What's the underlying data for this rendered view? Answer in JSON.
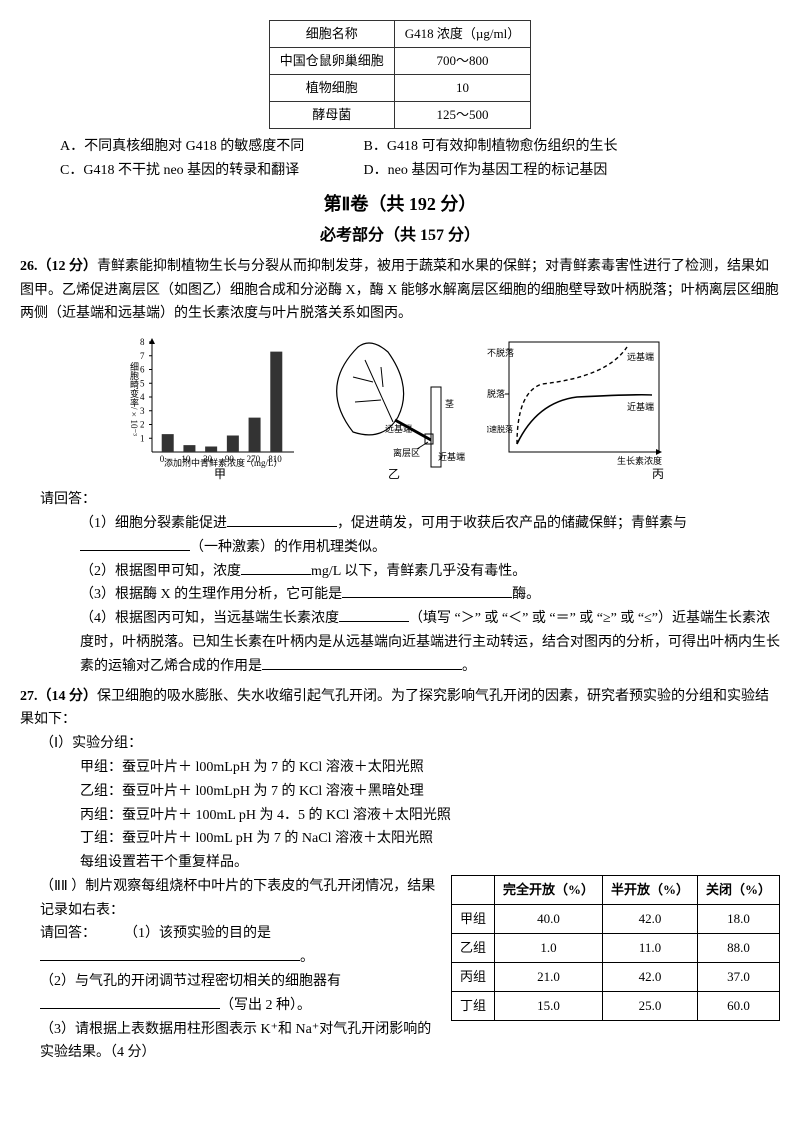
{
  "top_table": {
    "rows": [
      [
        "细胞名称",
        "G418 浓度（µg/ml）"
      ],
      [
        "中国仓鼠卵巢细胞",
        "700～800"
      ],
      [
        "植物细胞",
        "10"
      ],
      [
        "酵母菌",
        "125～500"
      ]
    ]
  },
  "q25_options": {
    "a": "A．不同真核细胞对 G418 的敏感度不同",
    "b": "B．G418 可有效抑制植物愈伤组织的生长",
    "c": "C．G418 不干扰 neo 基因的转录和翻译",
    "d": "D．neo 基因可作为基因工程的标记基因"
  },
  "section": {
    "part2": "第Ⅱ卷（共 192 分）",
    "required": "必考部分（共 157 分）"
  },
  "q26": {
    "num": "26.（12 分）",
    "stem1": "青鲜素能抑制植物生长与分裂从而抑制发芽，被用于蔬菜和水果的保鲜；对青鲜素毒害性进行了检测，结果如图甲。乙烯促进离层区（如图乙）细胞合成和分泌酶 X，酶 X 能够水解离层区细胞的细胞壁导致叶柄脱落；叶柄离层区细胞两侧（近基端和远基端）的生长素浓度与叶片脱落关系如图丙。",
    "fig_jia": {
      "y_label": "细胞畸变率/×10⁻³",
      "x_label": "添加剂中青鲜素浓度（mg/L）",
      "categories": [
        "0",
        "10",
        "30",
        "90",
        "270",
        "810"
      ],
      "values": [
        1.3,
        0.5,
        0.4,
        1.2,
        2.5,
        7.3
      ],
      "y_max": 8,
      "ticks": [
        "1",
        "2",
        "3",
        "4",
        "5",
        "6",
        "7",
        "8"
      ],
      "caption": "甲"
    },
    "fig_yi": {
      "labels": {
        "far": "远基端",
        "near": "近基端",
        "layer": "离层区",
        "stem": "茎"
      },
      "caption": "乙"
    },
    "fig_bing": {
      "y_labels": [
        "不脱落",
        "脱落",
        "加速脱落"
      ],
      "curve_far": "远基端",
      "curve_near": "近基端",
      "x_label": "生长素浓度",
      "caption": "丙"
    },
    "prompt": "请回答：",
    "s1a": "（1）细胞分裂素能促进",
    "s1b": "，促进萌发，可用于收获后农产品的储藏保鲜；青鲜素与",
    "s1c": "（一种激素）的作用机理类似。",
    "s2a": "（2）根据图甲可知，浓度",
    "s2b": "mg/L 以下，青鲜素几乎没有毒性。",
    "s3a": "（3）根据酶 X 的生理作用分析，它可能是",
    "s3b": "酶。",
    "s4a": "（4）根据图丙可知，当远基端生长素浓度",
    "s4b": "（填写 “＞” 或 “＜” 或 “＝” 或 “≥” 或 “≤”）近基端生长素浓度时，叶柄脱落。已知生长素在叶柄内是从远基端向近基端进行主动转运，结合对图丙的分析，可得出叶柄内生长素的运输对乙烯合成的作用是",
    "s4c": "。"
  },
  "q27": {
    "num": "27.（14 分）",
    "stem": "保卫细胞的吸水膨胀、失水收缩引起气孔开闭。为了探究影响气孔开闭的因素，研究者预实验的分组和实验结果如下：",
    "part1_title": "（Ⅰ）实验分组：",
    "groups": [
      "甲组：蚕豆叶片＋ l00mLpH 为 7 的 KCl 溶液＋太阳光照",
      "乙组：蚕豆叶片＋ l00mLpH 为 7 的 KCl 溶液＋黑暗处理",
      "丙组：蚕豆叶片＋ 100mL pH 为 4．5 的 KCl 溶液＋太阳光照",
      "丁组：蚕豆叶片＋ l00mL pH 为 7 的 NaCl 溶液＋太阳光照"
    ],
    "repeat": "每组设置若干个重复样品。",
    "part2": "（ⅡⅡ ）制片观察每组烧杯中叶片的下表皮的气孔开闭情况，结果记录如右表：",
    "answer_prompt": "请回答：",
    "s1": "（1）该预实验的目的是",
    "s1_end": "。",
    "s2a": "（2）与气孔的开闭调节过程密切相关的细胞器有",
    "s2b": "（写出 2 种）。",
    "s3": "（3）请根据上表数据用柱形图表示 K⁺和 Na⁺对气孔开闭影响的实验结果。（4 分）",
    "results": {
      "headers": [
        "",
        "完全开放（%）",
        "半开放（%）",
        "关闭（%）"
      ],
      "rows": [
        [
          "甲组",
          "40.0",
          "42.0",
          "18.0"
        ],
        [
          "乙组",
          "1.0",
          "11.0",
          "88.0"
        ],
        [
          "丙组",
          "21.0",
          "42.0",
          "37.0"
        ],
        [
          "丁组",
          "15.0",
          "25.0",
          "60.0"
        ]
      ]
    }
  }
}
